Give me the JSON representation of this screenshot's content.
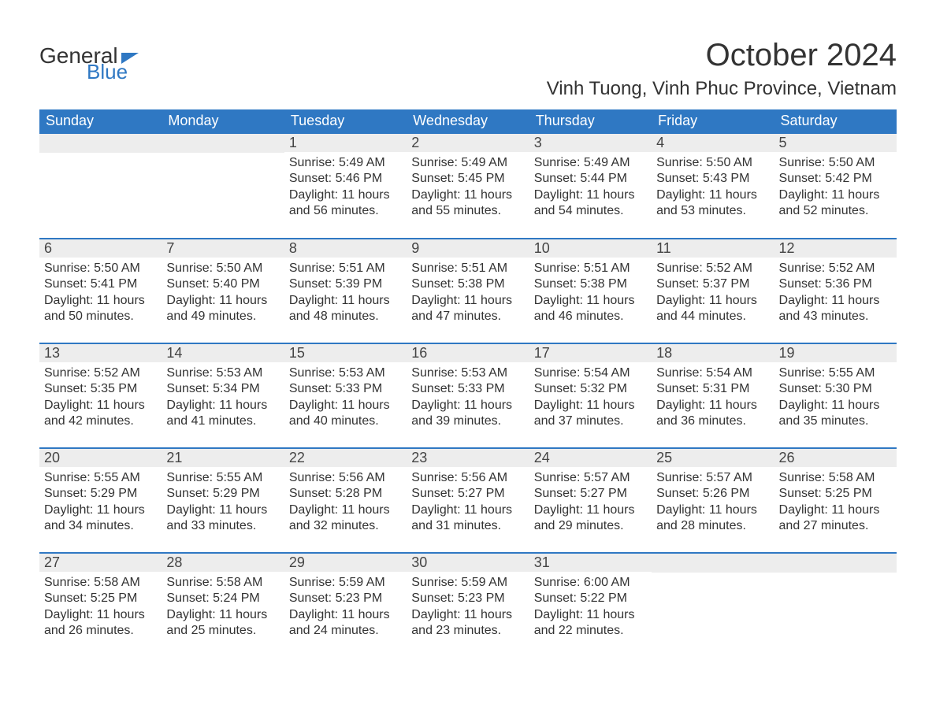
{
  "brand": {
    "line1": "General",
    "line2": "Blue"
  },
  "header": {
    "month_title": "October 2024",
    "location": "Vinh Tuong, Vinh Phuc Province, Vietnam"
  },
  "colors": {
    "header_bg": "#2f78c3",
    "header_text": "#ffffff",
    "daynum_bg": "#ededed",
    "row_separator": "#2f78c3",
    "page_bg": "#ffffff",
    "text": "#333333"
  },
  "labels": {
    "sunrise": "Sunrise:",
    "sunset": "Sunset:",
    "daylight": "Daylight:"
  },
  "weekdays": [
    "Sunday",
    "Monday",
    "Tuesday",
    "Wednesday",
    "Thursday",
    "Friday",
    "Saturday"
  ],
  "leading_blanks": 2,
  "trailing_blanks": 2,
  "days": [
    {
      "n": 1,
      "sunrise": "5:49 AM",
      "sunset": "5:46 PM",
      "daylight": "11 hours and 56 minutes."
    },
    {
      "n": 2,
      "sunrise": "5:49 AM",
      "sunset": "5:45 PM",
      "daylight": "11 hours and 55 minutes."
    },
    {
      "n": 3,
      "sunrise": "5:49 AM",
      "sunset": "5:44 PM",
      "daylight": "11 hours and 54 minutes."
    },
    {
      "n": 4,
      "sunrise": "5:50 AM",
      "sunset": "5:43 PM",
      "daylight": "11 hours and 53 minutes."
    },
    {
      "n": 5,
      "sunrise": "5:50 AM",
      "sunset": "5:42 PM",
      "daylight": "11 hours and 52 minutes."
    },
    {
      "n": 6,
      "sunrise": "5:50 AM",
      "sunset": "5:41 PM",
      "daylight": "11 hours and 50 minutes."
    },
    {
      "n": 7,
      "sunrise": "5:50 AM",
      "sunset": "5:40 PM",
      "daylight": "11 hours and 49 minutes."
    },
    {
      "n": 8,
      "sunrise": "5:51 AM",
      "sunset": "5:39 PM",
      "daylight": "11 hours and 48 minutes."
    },
    {
      "n": 9,
      "sunrise": "5:51 AM",
      "sunset": "5:38 PM",
      "daylight": "11 hours and 47 minutes."
    },
    {
      "n": 10,
      "sunrise": "5:51 AM",
      "sunset": "5:38 PM",
      "daylight": "11 hours and 46 minutes."
    },
    {
      "n": 11,
      "sunrise": "5:52 AM",
      "sunset": "5:37 PM",
      "daylight": "11 hours and 44 minutes."
    },
    {
      "n": 12,
      "sunrise": "5:52 AM",
      "sunset": "5:36 PM",
      "daylight": "11 hours and 43 minutes."
    },
    {
      "n": 13,
      "sunrise": "5:52 AM",
      "sunset": "5:35 PM",
      "daylight": "11 hours and 42 minutes."
    },
    {
      "n": 14,
      "sunrise": "5:53 AM",
      "sunset": "5:34 PM",
      "daylight": "11 hours and 41 minutes."
    },
    {
      "n": 15,
      "sunrise": "5:53 AM",
      "sunset": "5:33 PM",
      "daylight": "11 hours and 40 minutes."
    },
    {
      "n": 16,
      "sunrise": "5:53 AM",
      "sunset": "5:33 PM",
      "daylight": "11 hours and 39 minutes."
    },
    {
      "n": 17,
      "sunrise": "5:54 AM",
      "sunset": "5:32 PM",
      "daylight": "11 hours and 37 minutes."
    },
    {
      "n": 18,
      "sunrise": "5:54 AM",
      "sunset": "5:31 PM",
      "daylight": "11 hours and 36 minutes."
    },
    {
      "n": 19,
      "sunrise": "5:55 AM",
      "sunset": "5:30 PM",
      "daylight": "11 hours and 35 minutes."
    },
    {
      "n": 20,
      "sunrise": "5:55 AM",
      "sunset": "5:29 PM",
      "daylight": "11 hours and 34 minutes."
    },
    {
      "n": 21,
      "sunrise": "5:55 AM",
      "sunset": "5:29 PM",
      "daylight": "11 hours and 33 minutes."
    },
    {
      "n": 22,
      "sunrise": "5:56 AM",
      "sunset": "5:28 PM",
      "daylight": "11 hours and 32 minutes."
    },
    {
      "n": 23,
      "sunrise": "5:56 AM",
      "sunset": "5:27 PM",
      "daylight": "11 hours and 31 minutes."
    },
    {
      "n": 24,
      "sunrise": "5:57 AM",
      "sunset": "5:27 PM",
      "daylight": "11 hours and 29 minutes."
    },
    {
      "n": 25,
      "sunrise": "5:57 AM",
      "sunset": "5:26 PM",
      "daylight": "11 hours and 28 minutes."
    },
    {
      "n": 26,
      "sunrise": "5:58 AM",
      "sunset": "5:25 PM",
      "daylight": "11 hours and 27 minutes."
    },
    {
      "n": 27,
      "sunrise": "5:58 AM",
      "sunset": "5:25 PM",
      "daylight": "11 hours and 26 minutes."
    },
    {
      "n": 28,
      "sunrise": "5:58 AM",
      "sunset": "5:24 PM",
      "daylight": "11 hours and 25 minutes."
    },
    {
      "n": 29,
      "sunrise": "5:59 AM",
      "sunset": "5:23 PM",
      "daylight": "11 hours and 24 minutes."
    },
    {
      "n": 30,
      "sunrise": "5:59 AM",
      "sunset": "5:23 PM",
      "daylight": "11 hours and 23 minutes."
    },
    {
      "n": 31,
      "sunrise": "6:00 AM",
      "sunset": "5:22 PM",
      "daylight": "11 hours and 22 minutes."
    }
  ]
}
